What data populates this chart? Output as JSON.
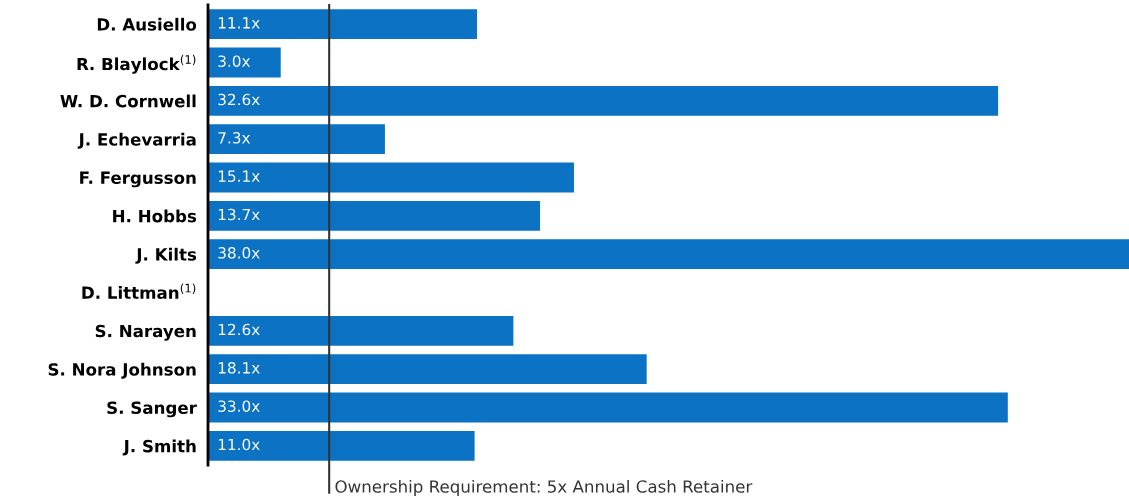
{
  "chart_data": {
    "type": "bar",
    "orientation": "horizontal",
    "categories": [
      "D. Ausiello",
      "R. Blaylock$^{(1)}$",
      "W. D. Cornwell",
      "J. Echevarria",
      "F. Fergusson",
      "H. Hobbs",
      "J. Kilts",
      "D. Littman$^{(1)}$",
      "S. Narayen",
      "S. Nora Johnson",
      "S. Sanger",
      "J. Smith"
    ],
    "values": [
      11.1,
      3.0,
      32.6,
      7.3,
      15.1,
      13.7,
      38.0,
      null,
      12.6,
      18.1,
      33.0,
      11.0
    ],
    "value_labels": [
      "11.1x",
      "3.0x",
      "32.6x",
      "7.3x",
      "15.1x",
      "13.7x",
      "38.0x",
      null,
      "12.6x",
      "18.1x",
      "33.0x",
      "11.0x"
    ],
    "color": "#0b72c4",
    "ref_lines": [
      {
        "axis": "x",
        "value": 5,
        "label": "Ownership Requirement: 5x Annual Cash Retainer",
        "color": "#333333"
      }
    ],
    "tick_labels": "y",
    "grid": false,
    "legend": false
  }
}
